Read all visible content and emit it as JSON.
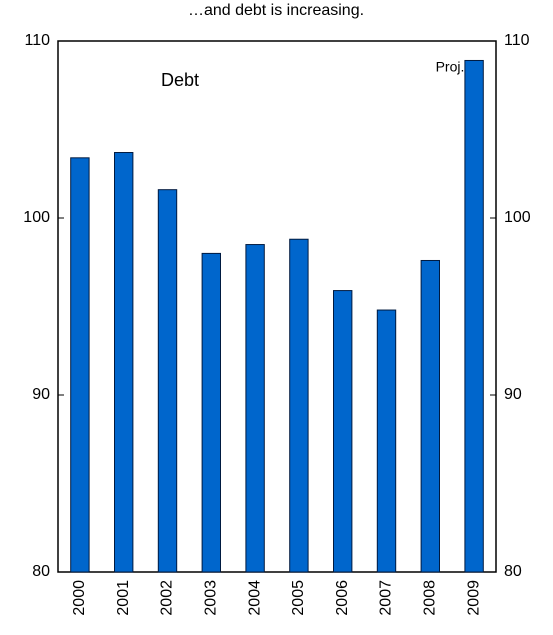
{
  "chart_data": {
    "type": "bar",
    "title": "…and debt is increasing.",
    "annotations": [
      "Debt",
      "Proj."
    ],
    "categories": [
      "2000",
      "2001",
      "2002",
      "2003",
      "2004",
      "2005",
      "2006",
      "2007",
      "2008",
      "2009"
    ],
    "values": [
      103.4,
      103.7,
      101.6,
      98.0,
      98.5,
      98.8,
      95.9,
      94.8,
      97.6,
      108.9
    ],
    "color": "#0066cc",
    "ylim": [
      80,
      110
    ],
    "yticks": [
      80,
      90,
      100,
      110
    ],
    "y2lim": [
      80,
      110
    ],
    "y2ticks": [
      80,
      90,
      100,
      110
    ],
    "grid": false
  }
}
